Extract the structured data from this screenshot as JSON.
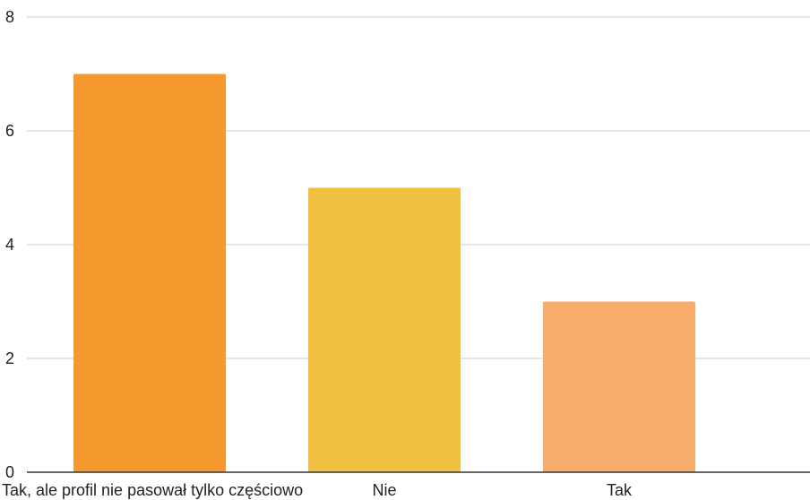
{
  "chart_data": {
    "type": "bar",
    "categories": [
      "Tak, ale profil nie pasował tylko częściowo",
      "Nie",
      "Tak"
    ],
    "values": [
      7,
      5,
      3
    ],
    "bar_colors": [
      "#f5992e",
      "#f0c042",
      "#f6ac6b"
    ],
    "y_ticks": [
      0,
      2,
      4,
      6,
      8
    ],
    "ylim": [
      0,
      8
    ],
    "grid": true,
    "legend": "none",
    "title": "",
    "xlabel": "",
    "ylabel": ""
  }
}
